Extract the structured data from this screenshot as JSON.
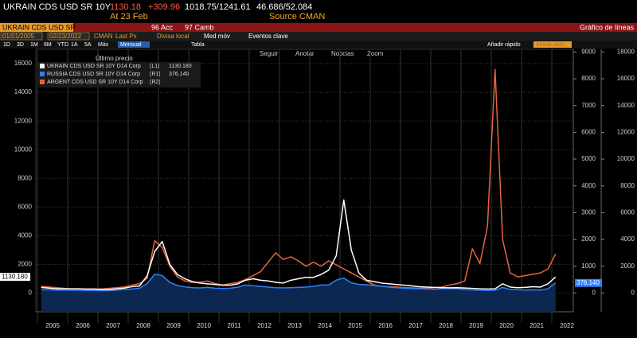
{
  "header": {
    "ticker": "UKRAIN CDS USD SR 10Y",
    "price": "1130.18",
    "change": "+309.96",
    "range": "1018.75/1241.61",
    "bid_ask": "46.686/52.084",
    "time": "At 23 Feb",
    "source": "Source CMAN"
  },
  "menu": {
    "security": "UKRAIN CDS USD SR",
    "actions": "96 Acc",
    "change": "97 Camb",
    "chart_type": "Gráfico de líneas"
  },
  "controls": {
    "start": "01/01/2005",
    "end": "02/23/2022",
    "source": "CMAN",
    "field": "Last Px",
    "currency": "Divisa local",
    "moving_avg": "Med móv",
    "events": "Eventos clave"
  },
  "periods": [
    "1D",
    "3D",
    "1M",
    "6M",
    "YTD",
    "1A",
    "5A",
    "Máx"
  ],
  "frequency": "Mensual",
  "table": "Tabla",
  "quick_add": "Añadir rápido",
  "add_data": "Añadir dato",
  "tools": [
    "Seguir",
    "Anotar",
    "Noticias",
    "Zoom"
  ],
  "chart_data": {
    "type": "line",
    "legend_title": "Último precio",
    "grid": true,
    "categories": [
      "2005",
      null,
      null,
      null,
      "2006",
      null,
      null,
      null,
      "2007",
      null,
      null,
      null,
      "2008",
      null,
      null,
      null,
      "2009",
      null,
      null,
      null,
      "2010",
      null,
      null,
      null,
      "2011",
      null,
      null,
      null,
      "2012",
      null,
      null,
      null,
      "2013",
      null,
      null,
      null,
      "2014",
      null,
      null,
      null,
      "2015",
      null,
      null,
      null,
      "2016",
      null,
      null,
      null,
      "2017",
      null,
      null,
      null,
      "2018",
      null,
      null,
      null,
      "2019",
      null,
      null,
      null,
      "2020",
      null,
      null,
      null,
      "2021",
      null,
      null,
      null,
      "2022"
    ],
    "ylim": [
      -1300,
      17000
    ],
    "yticks": [
      0,
      2000,
      4000,
      6000,
      8000,
      10000,
      12000,
      14000,
      16000
    ],
    "y2lim": [
      -700,
      9100
    ],
    "y2ticks": [
      0,
      1000,
      2000,
      3000,
      4000,
      5000,
      6000,
      7000,
      8000,
      9000
    ],
    "y3lim": [
      -1400,
      18200
    ],
    "y3ticks": [
      0,
      2000,
      4000,
      6000,
      8000,
      10000,
      12000,
      14000,
      16000,
      18000
    ],
    "series": [
      {
        "name": "UKRAIN CDS USD SR 10Y D14 Corp",
        "axis_code": "(L1)",
        "axis": "y",
        "color": "#ffffff",
        "values": [
          400,
          350,
          300,
          300,
          300,
          300,
          280,
          280,
          250,
          250,
          300,
          350,
          450,
          500,
          1200,
          2900,
          3600,
          2000,
          1300,
          1000,
          800,
          700,
          650,
          600,
          550,
          550,
          650,
          900,
          1000,
          900,
          850,
          750,
          700,
          900,
          1000,
          1100,
          1100,
          1300,
          1600,
          2600,
          6500,
          3000,
          1400,
          900,
          800,
          700,
          650,
          600,
          550,
          500,
          450,
          420,
          400,
          380,
          370,
          380,
          360,
          330,
          300,
          290,
          300,
          650,
          420,
          380,
          400,
          450,
          420,
          650,
          1130.18
        ],
        "value_labels": [
          null,
          null,
          null,
          null,
          null,
          null,
          null,
          null,
          null,
          null,
          null,
          null,
          null,
          null,
          null,
          null,
          null,
          null,
          null,
          null,
          null,
          null,
          null,
          null,
          null,
          null,
          null,
          null,
          null,
          null,
          null,
          null,
          null,
          null,
          null,
          null,
          null,
          null,
          null,
          null,
          null,
          null,
          null,
          null,
          null,
          null,
          null,
          null,
          null,
          null,
          null,
          null,
          null,
          null,
          null,
          null,
          null,
          null,
          null,
          null,
          null,
          null,
          null,
          null,
          null,
          null,
          null,
          null,
          "1130.180"
        ]
      },
      {
        "name": "RUSSIA CDS USD SR 10Y D14 Corp",
        "axis_code": "(R1)",
        "axis": "y2",
        "color": "#2f7fff",
        "area_color": "#0c2850",
        "values": [
          130,
          120,
          110,
          100,
          100,
          100,
          95,
          95,
          90,
          90,
          110,
          130,
          150,
          180,
          350,
          700,
          650,
          400,
          280,
          230,
          200,
          190,
          210,
          180,
          170,
          180,
          220,
          300,
          270,
          250,
          220,
          200,
          190,
          200,
          210,
          220,
          250,
          300,
          300,
          480,
          560,
          380,
          320,
          310,
          280,
          250,
          220,
          200,
          180,
          170,
          160,
          150,
          140,
          160,
          170,
          160,
          130,
          110,
          100,
          95,
          100,
          210,
          130,
          120,
          110,
          120,
          110,
          160,
          376.14
        ],
        "value_labels": [
          null,
          null,
          null,
          null,
          null,
          null,
          null,
          null,
          null,
          null,
          null,
          null,
          null,
          null,
          null,
          null,
          null,
          null,
          null,
          null,
          null,
          null,
          null,
          null,
          null,
          null,
          null,
          null,
          null,
          null,
          null,
          null,
          null,
          null,
          null,
          null,
          null,
          null,
          null,
          null,
          null,
          null,
          null,
          null,
          null,
          null,
          null,
          null,
          null,
          null,
          null,
          null,
          null,
          null,
          null,
          null,
          null,
          null,
          null,
          null,
          null,
          null,
          null,
          null,
          null,
          null,
          null,
          null,
          "376.140"
        ]
      },
      {
        "name": "ARGENT CDS USD SR 10Y D14 Corp",
        "axis_code": "(R2)",
        "axis": "y3",
        "color": "#e8643a",
        "values": [
          500,
          450,
          400,
          350,
          300,
          300,
          300,
          300,
          300,
          350,
          400,
          450,
          600,
          700,
          1100,
          3900,
          3400,
          2000,
          1200,
          900,
          800,
          800,
          900,
          700,
          600,
          700,
          800,
          1000,
          1300,
          1600,
          2300,
          3000,
          2500,
          2700,
          2400,
          2000,
          2300,
          2000,
          2400,
          2100,
          1800,
          1500,
          1200,
          900,
          600,
          500,
          480,
          450,
          400,
          380,
          360,
          350,
          400,
          450,
          600,
          700,
          900,
          3300,
          2200,
          5000,
          16700,
          4000,
          1500,
          1200,
          1300,
          1400,
          1500,
          1800,
          2918.4351
        ]
      }
    ]
  }
}
